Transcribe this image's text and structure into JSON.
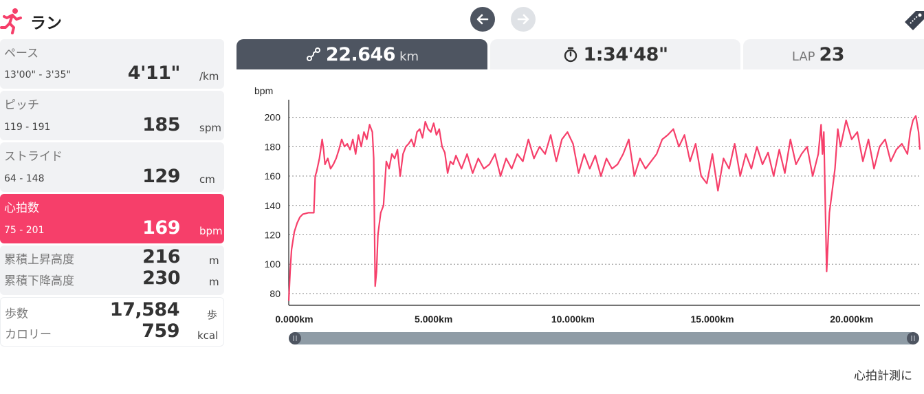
{
  "header": {
    "title": "ラン",
    "icons": {
      "activity": "runner-icon",
      "prev": "arrow-left-icon",
      "next": "arrow-right-icon",
      "tag": "tag-icon"
    }
  },
  "stats": {
    "pace": {
      "label": "ペース",
      "range": "13'00\" - 3'35\"",
      "value": "4'11\"",
      "unit": "/km"
    },
    "pitch": {
      "label": "ピッチ",
      "range": "119 - 191",
      "value": "185",
      "unit": "spm"
    },
    "stride": {
      "label": "ストライド",
      "range": "64 - 148",
      "value": "129",
      "unit": "cm"
    },
    "heart": {
      "label": "心拍数",
      "range": "75 - 201",
      "value": "169",
      "unit": "bpm"
    },
    "ascent": {
      "label": "累積上昇高度",
      "value": "216",
      "unit": "m"
    },
    "descent": {
      "label": "累積下降高度",
      "value": "230",
      "unit": "m"
    },
    "steps": {
      "label": "歩数",
      "value": "17,584",
      "unit": "歩"
    },
    "calories": {
      "label": "カロリー",
      "value": "759",
      "unit": "kcal"
    }
  },
  "tabs": {
    "distance": {
      "value": "22.646",
      "unit": "km",
      "icon": "route-icon"
    },
    "time": {
      "value": "1:34'48\"",
      "icon": "stopwatch-icon"
    },
    "lap": {
      "label": "LAP",
      "value": "23"
    }
  },
  "footer": {
    "note": "心拍計測に"
  },
  "colors": {
    "accent": "#f63f6a",
    "dark": "#4e5561",
    "panel": "#f1f2f4",
    "slider": "#8f9ca6"
  },
  "chart_data": {
    "type": "line",
    "ylabel": "bpm",
    "yticks": [
      80,
      100,
      120,
      140,
      160,
      180,
      200
    ],
    "ylim": [
      72,
      212
    ],
    "xlim": [
      0,
      22.646
    ],
    "xticks": [
      0,
      5,
      10,
      15,
      20
    ],
    "xtick_labels": [
      "0.000km",
      "5.000km",
      "10.000km",
      "15.000km",
      "20.000km"
    ],
    "grid": "horizontal-dashed",
    "series": [
      {
        "color": "#f63f6a",
        "x": [
          0,
          0.05,
          0.1,
          0.2,
          0.3,
          0.4,
          0.5,
          0.7,
          0.9,
          0.95,
          1.0,
          1.1,
          1.2,
          1.25,
          1.3,
          1.4,
          1.5,
          1.6,
          1.7,
          1.8,
          1.9,
          2.0,
          2.1,
          2.2,
          2.3,
          2.4,
          2.5,
          2.6,
          2.7,
          2.8,
          2.9,
          3.0,
          3.05,
          3.1,
          3.15,
          3.2,
          3.3,
          3.4,
          3.5,
          3.6,
          3.7,
          3.8,
          3.9,
          4.0,
          4.1,
          4.2,
          4.3,
          4.4,
          4.5,
          4.6,
          4.7,
          4.8,
          4.9,
          5.0,
          5.1,
          5.2,
          5.3,
          5.4,
          5.5,
          5.6,
          5.7,
          5.8,
          5.9,
          6.0,
          6.2,
          6.4,
          6.6,
          6.8,
          7.0,
          7.2,
          7.4,
          7.6,
          7.8,
          8.0,
          8.2,
          8.4,
          8.6,
          8.8,
          9.0,
          9.2,
          9.4,
          9.6,
          9.8,
          10.0,
          10.2,
          10.4,
          10.6,
          10.8,
          11.0,
          11.2,
          11.4,
          11.6,
          11.8,
          12.0,
          12.2,
          12.4,
          12.6,
          12.8,
          13.0,
          13.2,
          13.4,
          13.6,
          13.8,
          14.0,
          14.2,
          14.4,
          14.6,
          14.8,
          15.0,
          15.2,
          15.4,
          15.6,
          15.8,
          16.0,
          16.2,
          16.4,
          16.6,
          16.8,
          17.0,
          17.2,
          17.4,
          17.6,
          17.8,
          18.0,
          18.2,
          18.4,
          18.6,
          18.8,
          19.0,
          19.1,
          19.15,
          19.2,
          19.3,
          19.4,
          19.5,
          19.6,
          19.7,
          19.8,
          20.0,
          20.2,
          20.4,
          20.6,
          20.8,
          21.0,
          21.2,
          21.4,
          21.6,
          21.8,
          22.0,
          22.2,
          22.3,
          22.4,
          22.5,
          22.6,
          22.646
        ],
        "y": [
          75,
          95,
          110,
          122,
          128,
          132,
          134,
          135,
          135,
          160,
          163,
          172,
          185,
          178,
          168,
          172,
          165,
          168,
          172,
          178,
          185,
          180,
          182,
          178,
          185,
          175,
          188,
          180,
          190,
          185,
          195,
          190,
          172,
          85,
          95,
          120,
          135,
          140,
          170,
          165,
          175,
          172,
          178,
          160,
          175,
          180,
          182,
          185,
          180,
          190,
          192,
          186,
          197,
          192,
          190,
          196,
          188,
          192,
          180,
          176,
          162,
          170,
          168,
          174,
          165,
          175,
          162,
          172,
          165,
          168,
          175,
          160,
          172,
          165,
          175,
          170,
          185,
          172,
          180,
          175,
          188,
          170,
          185,
          190,
          182,
          162,
          175,
          165,
          174,
          160,
          172,
          165,
          168,
          175,
          185,
          160,
          172,
          165,
          170,
          175,
          185,
          188,
          192,
          180,
          188,
          170,
          182,
          160,
          155,
          175,
          150,
          172,
          165,
          182,
          160,
          175,
          165,
          180,
          168,
          176,
          160,
          178,
          162,
          185,
          168,
          175,
          180,
          160,
          175,
          195,
          175,
          190,
          95,
          135,
          150,
          165,
          192,
          180,
          198,
          185,
          190,
          170,
          185,
          165,
          180,
          185,
          170,
          178,
          182,
          175,
          190,
          198,
          201,
          190,
          178
        ]
      }
    ]
  }
}
